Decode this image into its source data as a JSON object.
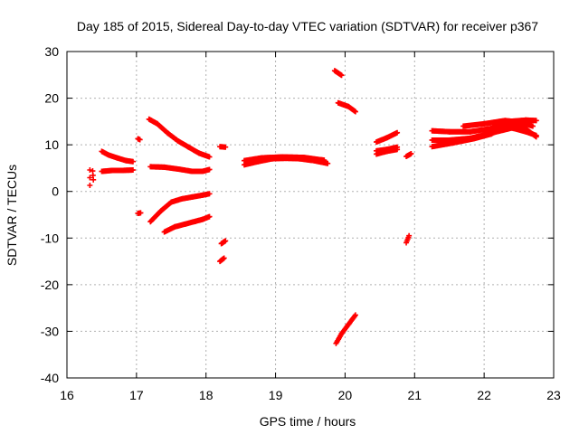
{
  "chart_data": {
    "type": "scatter",
    "title": "Day 185 of 2015, Sidereal Day-to-day VTEC variation (SDTVAR) for receiver p367",
    "xlabel": "GPS time / hours",
    "ylabel": "SDTVAR / TECUs",
    "xlim": [
      16,
      23
    ],
    "ylim": [
      -40,
      30
    ],
    "xticks": [
      "16",
      "17",
      "18",
      "19",
      "20",
      "21",
      "22",
      "23"
    ],
    "yticks": [
      "-40",
      "-30",
      "-20",
      "-10",
      "0",
      "10",
      "20",
      "30"
    ],
    "grid": true,
    "marker": "plus",
    "color": "#ff0000",
    "series": [
      {
        "segments": [
          [
            [
              16.33,
              4.6
            ],
            [
              16.33,
              1.3
            ]
          ],
          [
            [
              16.37,
              4.4
            ],
            [
              16.38,
              2.5
            ]
          ],
          [
            [
              16.5,
              8.6
            ],
            [
              16.6,
              7.8
            ],
            [
              16.72,
              7.2
            ],
            [
              16.85,
              6.6
            ],
            [
              16.95,
              6.4
            ]
          ],
          [
            [
              16.5,
              4.3
            ],
            [
              16.65,
              4.5
            ],
            [
              16.8,
              4.5
            ],
            [
              16.95,
              4.6
            ]
          ],
          [
            [
              17.02,
              11.3
            ],
            [
              17.05,
              11.1
            ]
          ],
          [
            [
              17.18,
              15.5
            ],
            [
              17.3,
              14.5
            ],
            [
              17.45,
              12.5
            ],
            [
              17.6,
              10.8
            ],
            [
              17.75,
              9.5
            ],
            [
              17.9,
              8.2
            ],
            [
              18.05,
              7.4
            ]
          ],
          [
            [
              17.2,
              5.3
            ],
            [
              17.4,
              5.2
            ],
            [
              17.6,
              4.8
            ],
            [
              17.8,
              4.3
            ],
            [
              17.95,
              4.3
            ],
            [
              18.05,
              4.7
            ]
          ],
          [
            [
              17.02,
              -4.7
            ],
            [
              17.06,
              -4.6
            ]
          ],
          [
            [
              17.2,
              -6.5
            ],
            [
              17.35,
              -4.2
            ],
            [
              17.5,
              -2.3
            ],
            [
              17.65,
              -1.6
            ],
            [
              17.8,
              -1.2
            ],
            [
              17.95,
              -0.8
            ],
            [
              18.05,
              -0.5
            ]
          ],
          [
            [
              17.4,
              -8.7
            ],
            [
              17.55,
              -7.6
            ],
            [
              17.7,
              -7.0
            ],
            [
              17.85,
              -6.4
            ],
            [
              17.95,
              -6.0
            ],
            [
              18.05,
              -5.4
            ]
          ],
          [
            [
              18.2,
              9.6
            ],
            [
              18.28,
              9.5
            ]
          ],
          [
            [
              18.22,
              -11.2
            ],
            [
              18.28,
              -10.6
            ]
          ],
          [
            [
              18.2,
              -15.0
            ],
            [
              18.26,
              -14.3
            ]
          ],
          [
            [
              18.55,
              5.7
            ],
            [
              18.75,
              6.4
            ],
            [
              18.95,
              7.0
            ],
            [
              19.15,
              7.1
            ],
            [
              19.35,
              7.0
            ],
            [
              19.55,
              6.6
            ],
            [
              19.75,
              6.0
            ]
          ],
          [
            [
              18.55,
              6.6
            ],
            [
              18.8,
              7.2
            ],
            [
              19.1,
              7.4
            ],
            [
              19.4,
              7.3
            ],
            [
              19.7,
              6.7
            ]
          ],
          [
            [
              19.85,
              25.9
            ],
            [
              19.95,
              24.9
            ]
          ],
          [
            [
              19.9,
              19.0
            ],
            [
              20.05,
              18.2
            ],
            [
              20.15,
              17.1
            ]
          ],
          [
            [
              19.87,
              -32.6
            ],
            [
              19.95,
              -30.5
            ],
            [
              20.05,
              -28.5
            ],
            [
              20.15,
              -26.5
            ]
          ],
          [
            [
              20.45,
              10.6
            ],
            [
              20.6,
              11.5
            ],
            [
              20.75,
              12.6
            ]
          ],
          [
            [
              20.45,
              8.0
            ],
            [
              20.6,
              8.6
            ],
            [
              20.75,
              9.0
            ]
          ],
          [
            [
              20.45,
              8.7
            ],
            [
              20.6,
              9.0
            ],
            [
              20.75,
              9.5
            ]
          ],
          [
            [
              20.88,
              -11.0
            ],
            [
              20.92,
              -9.5
            ]
          ],
          [
            [
              20.88,
              7.5
            ],
            [
              20.95,
              8.1
            ]
          ],
          [
            [
              21.25,
              13.0
            ],
            [
              21.5,
              12.8
            ],
            [
              21.8,
              12.8
            ],
            [
              22.1,
              13.5
            ],
            [
              22.35,
              15.0
            ],
            [
              22.6,
              15.3
            ],
            [
              22.75,
              15.2
            ]
          ],
          [
            [
              21.25,
              11.0
            ],
            [
              21.5,
              11.0
            ],
            [
              21.8,
              11.4
            ],
            [
              22.1,
              12.5
            ],
            [
              22.4,
              13.6
            ],
            [
              22.6,
              12.8
            ],
            [
              22.75,
              12.0
            ]
          ],
          [
            [
              21.25,
              9.6
            ],
            [
              21.55,
              10.4
            ],
            [
              21.85,
              11.3
            ],
            [
              22.1,
              12.3
            ],
            [
              22.35,
              14.5
            ],
            [
              22.6,
              13.4
            ],
            [
              22.75,
              11.7
            ]
          ],
          [
            [
              21.7,
              14.0
            ],
            [
              22.0,
              14.5
            ],
            [
              22.3,
              15.2
            ],
            [
              22.5,
              14.9
            ],
            [
              22.7,
              14.0
            ]
          ]
        ]
      }
    ]
  }
}
